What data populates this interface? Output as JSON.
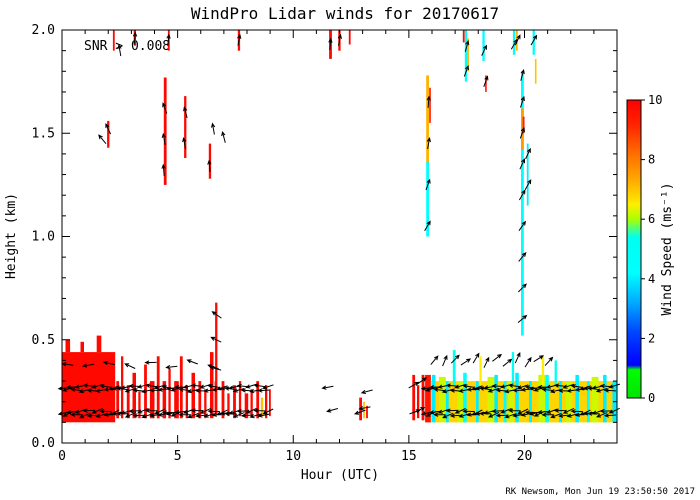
{
  "chart_data": {
    "type": "heatmap",
    "title": "WindPro Lidar winds for 20170617",
    "xlabel": "Hour (UTC)",
    "ylabel": "Height (km)",
    "annotation": "SNR > 0.008",
    "credit": "RK Newsom, Mon Jun 19 23:50:50 2017",
    "xlim": [
      0,
      24
    ],
    "ylim": [
      0,
      2
    ],
    "x_major_ticks": [
      0,
      5,
      10,
      15,
      20
    ],
    "x_tick_labels": [
      "0",
      "5",
      "10",
      "15",
      "20"
    ],
    "x_minor_step": 1,
    "y_major_ticks": [
      0,
      0.5,
      1,
      1.5,
      2
    ],
    "y_tick_labels": [
      "0.0",
      "0.5",
      "1.0",
      "1.5",
      "2.0"
    ],
    "y_minor_step": 0.1,
    "grid": false,
    "colorbar": {
      "label": "Wind Speed (ms⁻¹)",
      "range": [
        0,
        10
      ],
      "ticks": [
        0,
        2,
        4,
        6,
        8,
        10
      ],
      "colormap": [
        [
          0.0,
          "#00e400"
        ],
        [
          0.95,
          "#00ff00"
        ],
        [
          1.1,
          "#0000ff"
        ],
        [
          2.2,
          "#0044ff"
        ],
        [
          3.2,
          "#00aaff"
        ],
        [
          4.2,
          "#00ffff"
        ],
        [
          5.4,
          "#00ffee"
        ],
        [
          6.0,
          "#aaff00"
        ],
        [
          6.5,
          "#ffee00"
        ],
        [
          7.3,
          "#ffaa00"
        ],
        [
          8.3,
          "#ff6600"
        ],
        [
          9.2,
          "#ff2200"
        ],
        [
          10.0,
          "#ff0000"
        ]
      ]
    },
    "cells": [
      [
        0.0,
        2.3,
        0.1,
        0.44,
        9.8
      ],
      [
        0.15,
        0.2,
        0.44,
        0.5,
        9.8
      ],
      [
        0.8,
        0.15,
        0.44,
        0.49,
        9.8
      ],
      [
        1.5,
        0.2,
        0.44,
        0.52,
        9.8
      ],
      [
        2.35,
        0.12,
        0.12,
        0.3,
        9.8
      ],
      [
        2.55,
        0.1,
        0.12,
        0.42,
        9.8
      ],
      [
        2.8,
        0.12,
        0.12,
        0.28,
        9.8
      ],
      [
        3.05,
        0.15,
        0.12,
        0.34,
        9.8
      ],
      [
        3.3,
        0.1,
        0.12,
        0.25,
        9.8
      ],
      [
        3.55,
        0.12,
        0.12,
        0.38,
        9.8
      ],
      [
        3.8,
        0.2,
        0.12,
        0.3,
        9.8
      ],
      [
        4.1,
        0.12,
        0.12,
        0.42,
        9.8
      ],
      [
        4.35,
        0.15,
        0.12,
        0.3,
        9.8
      ],
      [
        4.6,
        0.1,
        0.12,
        0.36,
        9.8
      ],
      [
        4.85,
        0.2,
        0.12,
        0.3,
        9.8
      ],
      [
        5.1,
        0.12,
        0.12,
        0.42,
        9.8
      ],
      [
        5.35,
        0.1,
        0.12,
        0.28,
        9.8
      ],
      [
        5.6,
        0.15,
        0.12,
        0.34,
        9.8
      ],
      [
        5.9,
        0.12,
        0.12,
        0.3,
        9.8
      ],
      [
        6.15,
        0.1,
        0.12,
        0.26,
        9.8
      ],
      [
        6.4,
        0.15,
        0.12,
        0.44,
        9.8
      ],
      [
        6.6,
        0.12,
        0.14,
        0.3,
        9.8
      ],
      [
        6.62,
        0.1,
        0.3,
        0.68,
        9.8
      ],
      [
        6.9,
        0.12,
        0.12,
        0.3,
        9.8
      ],
      [
        7.15,
        0.1,
        0.13,
        0.24,
        9.8
      ],
      [
        7.4,
        0.12,
        0.12,
        0.28,
        9.8
      ],
      [
        7.65,
        0.1,
        0.13,
        0.3,
        9.8
      ],
      [
        7.9,
        0.15,
        0.12,
        0.24,
        9.8
      ],
      [
        8.15,
        0.1,
        0.13,
        0.26,
        9.8
      ],
      [
        8.4,
        0.12,
        0.12,
        0.3,
        9.8
      ],
      [
        8.6,
        0.1,
        0.13,
        0.22,
        7.0
      ],
      [
        8.78,
        0.1,
        0.12,
        0.28,
        9.8
      ],
      [
        8.95,
        0.08,
        0.13,
        0.26,
        9.8
      ],
      [
        12.85,
        0.12,
        0.11,
        0.22,
        9.8
      ],
      [
        13.02,
        0.08,
        0.12,
        0.2,
        7.0
      ],
      [
        13.15,
        0.08,
        0.12,
        0.18,
        9.8
      ],
      [
        15.15,
        0.12,
        0.11,
        0.33,
        9.8
      ],
      [
        15.35,
        0.1,
        0.12,
        0.28,
        9.8
      ],
      [
        15.55,
        0.12,
        0.11,
        0.33,
        9.8
      ],
      [
        1.95,
        0.1,
        1.43,
        1.56,
        9.8
      ],
      [
        2.2,
        0.08,
        1.9,
        2.0,
        9.8
      ],
      [
        3.1,
        0.1,
        1.93,
        2.0,
        9.8
      ],
      [
        4.4,
        0.12,
        1.25,
        1.77,
        9.8
      ],
      [
        4.58,
        0.08,
        1.9,
        2.0,
        9.8
      ],
      [
        5.28,
        0.1,
        1.38,
        1.68,
        9.8
      ],
      [
        6.35,
        0.1,
        1.28,
        1.45,
        9.8
      ],
      [
        7.6,
        0.1,
        1.9,
        2.0,
        9.8
      ],
      [
        11.55,
        0.12,
        1.86,
        2.0,
        9.8
      ],
      [
        11.95,
        0.1,
        1.9,
        2.0,
        9.8
      ],
      [
        12.4,
        0.08,
        1.93,
        2.0,
        9.8
      ],
      [
        15.75,
        0.12,
        1.35,
        1.78,
        7.2
      ],
      [
        15.75,
        0.12,
        1.0,
        1.36,
        4.2
      ],
      [
        15.88,
        0.07,
        1.55,
        1.72,
        9.5
      ],
      [
        17.42,
        0.1,
        1.75,
        2.0,
        4.2
      ],
      [
        17.52,
        0.08,
        1.8,
        1.96,
        7.2
      ],
      [
        17.33,
        0.08,
        1.94,
        2.0,
        9.8
      ],
      [
        18.18,
        0.1,
        1.85,
        2.0,
        4.2
      ],
      [
        18.3,
        0.06,
        1.7,
        1.78,
        9.8
      ],
      [
        19.5,
        0.1,
        1.88,
        2.0,
        4.5
      ],
      [
        19.63,
        0.08,
        1.9,
        2.0,
        7.2
      ],
      [
        19.85,
        0.12,
        0.52,
        1.8,
        4.2
      ],
      [
        19.85,
        0.12,
        1.42,
        1.62,
        7.5
      ],
      [
        19.92,
        0.08,
        1.5,
        1.58,
        9.5
      ],
      [
        20.1,
        0.08,
        1.15,
        1.45,
        4.0
      ],
      [
        20.35,
        0.1,
        1.88,
        2.0,
        4.5
      ],
      [
        20.45,
        0.07,
        1.74,
        1.86,
        7.0
      ],
      [
        15.7,
        0.25,
        0.1,
        0.33,
        9.5
      ],
      [
        15.95,
        8.05,
        0.1,
        0.3,
        6.8
      ],
      [
        16.0,
        0.15,
        0.1,
        0.33,
        4.0
      ],
      [
        16.3,
        0.3,
        0.1,
        0.32,
        6.2
      ],
      [
        16.6,
        0.12,
        0.1,
        0.3,
        4.0
      ],
      [
        16.9,
        0.12,
        0.28,
        0.45,
        5.0
      ],
      [
        17.1,
        0.25,
        0.1,
        0.3,
        6.2
      ],
      [
        17.35,
        0.15,
        0.1,
        0.34,
        4.2
      ],
      [
        17.9,
        0.12,
        0.1,
        0.3,
        4.0
      ],
      [
        18.05,
        0.1,
        0.28,
        0.42,
        6.5
      ],
      [
        18.4,
        0.3,
        0.1,
        0.32,
        6.2
      ],
      [
        18.7,
        0.15,
        0.1,
        0.33,
        4.0
      ],
      [
        19.1,
        0.12,
        0.1,
        0.3,
        4.2
      ],
      [
        19.3,
        0.25,
        0.1,
        0.3,
        6.2
      ],
      [
        19.45,
        0.1,
        0.28,
        0.44,
        5.0
      ],
      [
        19.6,
        0.15,
        0.1,
        0.34,
        4.0
      ],
      [
        20.2,
        0.12,
        0.1,
        0.3,
        4.0
      ],
      [
        20.6,
        0.3,
        0.1,
        0.33,
        6.2
      ],
      [
        20.75,
        0.1,
        0.28,
        0.42,
        6.5
      ],
      [
        20.9,
        0.15,
        0.1,
        0.33,
        4.2
      ],
      [
        21.3,
        0.1,
        0.28,
        0.4,
        5.0
      ],
      [
        21.5,
        0.12,
        0.1,
        0.3,
        4.0
      ],
      [
        21.8,
        0.25,
        0.1,
        0.3,
        6.2
      ],
      [
        22.2,
        0.15,
        0.1,
        0.33,
        4.0
      ],
      [
        22.7,
        0.12,
        0.1,
        0.3,
        4.2
      ],
      [
        22.9,
        0.3,
        0.1,
        0.32,
        6.2
      ],
      [
        23.4,
        0.15,
        0.1,
        0.33,
        4.0
      ],
      [
        23.8,
        0.2,
        0.1,
        0.3,
        4.0
      ]
    ],
    "arrows": [
      [
        1.75,
        1.47,
        130
      ],
      [
        2.0,
        1.52,
        115
      ],
      [
        2.5,
        1.9,
        100
      ],
      [
        3.15,
        1.96,
        85
      ],
      [
        4.4,
        1.32,
        95
      ],
      [
        4.42,
        1.47,
        100
      ],
      [
        4.45,
        1.62,
        110
      ],
      [
        4.6,
        1.95,
        85
      ],
      [
        5.3,
        1.45,
        100
      ],
      [
        5.35,
        1.6,
        105
      ],
      [
        6.38,
        1.34,
        95
      ],
      [
        6.55,
        1.52,
        100
      ],
      [
        6.65,
        0.36,
        165
      ],
      [
        6.67,
        0.5,
        155
      ],
      [
        6.7,
        0.62,
        145
      ],
      [
        7.0,
        1.48,
        105
      ],
      [
        7.65,
        1.95,
        80
      ],
      [
        11.6,
        1.93,
        85
      ],
      [
        12.0,
        1.95,
        80
      ],
      [
        11.5,
        0.27,
        190
      ],
      [
        11.7,
        0.16,
        195
      ],
      [
        12.9,
        0.15,
        200
      ],
      [
        13.1,
        0.17,
        190
      ],
      [
        13.2,
        0.25,
        195
      ],
      [
        15.2,
        0.28,
        30
      ],
      [
        15.25,
        0.15,
        20
      ],
      [
        15.45,
        0.16,
        25
      ],
      [
        15.55,
        0.3,
        35
      ],
      [
        15.8,
        1.05,
        60
      ],
      [
        15.82,
        1.25,
        70
      ],
      [
        15.85,
        1.45,
        80
      ],
      [
        15.85,
        1.65,
        85
      ],
      [
        17.48,
        1.8,
        70
      ],
      [
        17.5,
        1.92,
        75
      ],
      [
        18.25,
        1.9,
        65
      ],
      [
        18.32,
        1.75,
        70
      ],
      [
        19.55,
        1.93,
        60
      ],
      [
        19.7,
        1.95,
        65
      ],
      [
        19.9,
        0.6,
        40
      ],
      [
        19.9,
        0.75,
        45
      ],
      [
        19.9,
        0.9,
        50
      ],
      [
        19.9,
        1.05,
        55
      ],
      [
        19.9,
        1.2,
        60
      ],
      [
        19.9,
        1.35,
        65
      ],
      [
        19.9,
        1.5,
        70
      ],
      [
        19.9,
        1.65,
        72
      ],
      [
        19.9,
        1.78,
        75
      ],
      [
        20.15,
        1.25,
        60
      ],
      [
        20.15,
        1.4,
        65
      ],
      [
        20.4,
        1.95,
        60
      ]
    ],
    "arrow_rows": [
      [
        0.1,
        8.95,
        0.18,
        0.265,
        185,
        14
      ],
      [
        0.1,
        8.95,
        0.18,
        0.145,
        192,
        14
      ],
      [
        15.8,
        23.9,
        0.18,
        0.265,
        185,
        14
      ],
      [
        15.8,
        23.9,
        0.18,
        0.145,
        192,
        14
      ],
      [
        16.1,
        21.4,
        0.45,
        0.4,
        50,
        18
      ],
      [
        0.25,
        6.6,
        0.9,
        0.38,
        172,
        18
      ]
    ]
  }
}
